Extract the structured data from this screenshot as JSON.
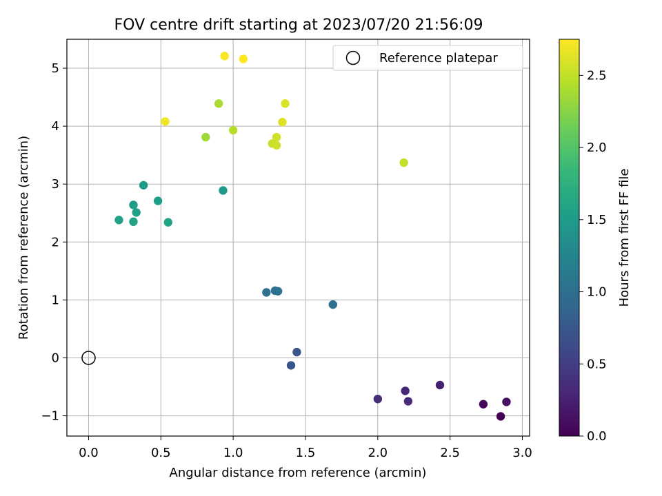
{
  "chart_data": {
    "type": "scatter",
    "title": "FOV centre drift starting at 2023/07/20 21:56:09",
    "xlabel": "Angular distance from reference (arcmin)",
    "ylabel": "Rotation from reference (arcmin)",
    "xlim": [
      -0.15,
      3.05
    ],
    "ylim": [
      -1.35,
      5.5
    ],
    "xticks": [
      0.0,
      0.5,
      1.0,
      1.5,
      2.0,
      2.5,
      3.0
    ],
    "xtick_labels": [
      "0.0",
      "0.5",
      "1.0",
      "1.5",
      "2.0",
      "2.5",
      "3.0"
    ],
    "yticks": [
      -1,
      0,
      1,
      2,
      3,
      4,
      5
    ],
    "ytick_labels": [
      "−1",
      "0",
      "1",
      "2",
      "3",
      "4",
      "5"
    ],
    "grid": true,
    "legend": {
      "placement": "upper-right",
      "entries": [
        "Reference platepar"
      ]
    },
    "reference_point": {
      "x": 0.0,
      "y": 0.0,
      "name": "Reference platepar"
    },
    "colorbar": {
      "label": "Hours from first FF file",
      "colormap": "viridis",
      "range": [
        0.0,
        2.75
      ],
      "ticks": [
        0.0,
        0.5,
        1.0,
        1.5,
        2.0,
        2.5
      ],
      "tick_labels": [
        "0.0",
        "0.5",
        "1.0",
        "1.5",
        "2.0",
        "2.5"
      ]
    },
    "points": [
      {
        "x": 2.85,
        "y": -1.01,
        "hours": 0.0
      },
      {
        "x": 2.73,
        "y": -0.8,
        "hours": 0.05
      },
      {
        "x": 2.89,
        "y": -0.76,
        "hours": 0.1
      },
      {
        "x": 2.43,
        "y": -0.47,
        "hours": 0.25
      },
      {
        "x": 2.19,
        "y": -0.57,
        "hours": 0.3
      },
      {
        "x": 2.21,
        "y": -0.75,
        "hours": 0.33
      },
      {
        "x": 2.0,
        "y": -0.71,
        "hours": 0.36
      },
      {
        "x": 1.4,
        "y": -0.13,
        "hours": 0.72
      },
      {
        "x": 1.44,
        "y": 0.1,
        "hours": 0.75
      },
      {
        "x": 1.69,
        "y": 0.92,
        "hours": 1.0
      },
      {
        "x": 1.23,
        "y": 1.13,
        "hours": 1.02
      },
      {
        "x": 1.29,
        "y": 1.16,
        "hours": 1.03
      },
      {
        "x": 1.31,
        "y": 1.15,
        "hours": 1.04
      },
      {
        "x": 0.93,
        "y": 2.89,
        "hours": 1.48
      },
      {
        "x": 0.38,
        "y": 2.98,
        "hours": 1.5
      },
      {
        "x": 0.31,
        "y": 2.64,
        "hours": 1.52
      },
      {
        "x": 0.48,
        "y": 2.71,
        "hours": 1.54
      },
      {
        "x": 0.33,
        "y": 2.51,
        "hours": 1.55
      },
      {
        "x": 0.21,
        "y": 2.38,
        "hours": 1.57
      },
      {
        "x": 0.31,
        "y": 2.35,
        "hours": 1.58
      },
      {
        "x": 0.55,
        "y": 2.34,
        "hours": 1.6
      },
      {
        "x": 0.81,
        "y": 3.81,
        "hours": 2.35
      },
      {
        "x": 0.9,
        "y": 4.39,
        "hours": 2.4
      },
      {
        "x": 1.0,
        "y": 3.93,
        "hours": 2.45
      },
      {
        "x": 2.18,
        "y": 3.37,
        "hours": 2.5
      },
      {
        "x": 1.27,
        "y": 3.7,
        "hours": 2.52
      },
      {
        "x": 1.3,
        "y": 3.67,
        "hours": 2.54
      },
      {
        "x": 1.3,
        "y": 3.81,
        "hours": 2.56
      },
      {
        "x": 1.36,
        "y": 4.39,
        "hours": 2.6
      },
      {
        "x": 1.34,
        "y": 4.07,
        "hours": 2.62
      },
      {
        "x": 0.53,
        "y": 4.08,
        "hours": 2.7
      },
      {
        "x": 0.94,
        "y": 5.21,
        "hours": 2.73
      },
      {
        "x": 1.07,
        "y": 5.16,
        "hours": 2.75
      }
    ]
  }
}
